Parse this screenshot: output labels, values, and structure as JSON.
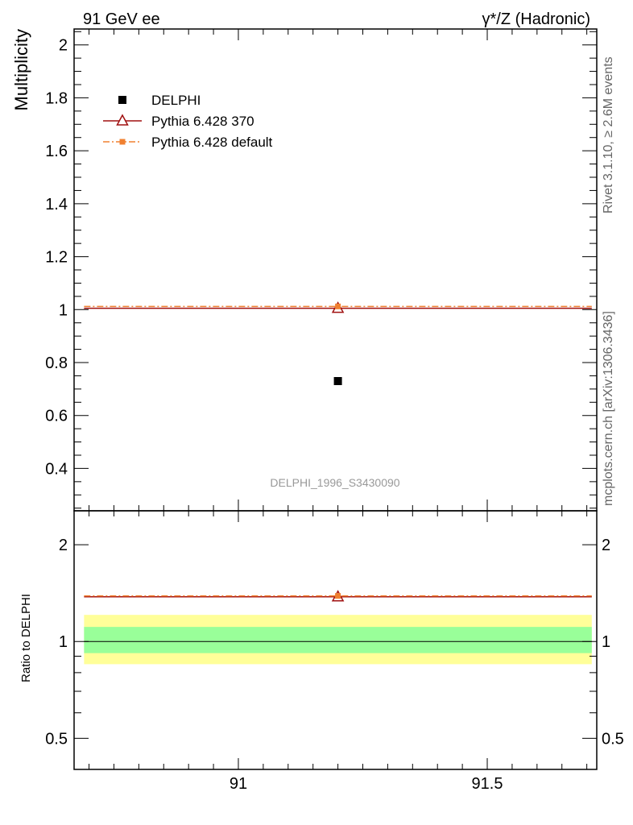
{
  "header": {
    "left": "91 GeV ee",
    "right": "γ*/Z (Hadronic)"
  },
  "side_text": {
    "rivet": "Rivet 3.1.10, ≥ 2.6M events",
    "mcplots": "mcplots.cern.ch [arXiv:1306.3436]"
  },
  "watermark": "DELPHI_1996_S3430090",
  "chart_data": [
    {
      "type": "scatter",
      "title": "",
      "ylabel": "Multiplicity",
      "xlim": [
        90.67,
        91.72
      ],
      "ylim": [
        0.24,
        2.06
      ],
      "yticks": [
        0.4,
        0.6,
        0.8,
        1,
        1.2,
        1.4,
        1.6,
        1.8,
        2
      ],
      "ytick_labels": [
        "0.4",
        "0.6",
        "0.8",
        "1",
        "1.2",
        "1.4",
        "1.6",
        "1.8",
        "2"
      ],
      "legend": {
        "placement": "top-left"
      },
      "series": [
        {
          "name": "DELPHI",
          "marker": "filled-square",
          "color": "#000000",
          "x": [
            91.2
          ],
          "y": [
            0.73
          ]
        },
        {
          "name": "Pythia 6.428 370",
          "marker": "open-triangle",
          "color": "#a01010",
          "x": [
            91.2
          ],
          "y": [
            1.005
          ],
          "xrange": [
            90.69,
            91.71
          ]
        },
        {
          "name": "Pythia 6.428 default",
          "marker": "filled-square-small",
          "color": "#f08030",
          "x": [
            91.2
          ],
          "y": [
            1.012
          ],
          "xrange": [
            90.69,
            91.71
          ]
        }
      ]
    },
    {
      "type": "line",
      "ylabel": "Ratio to DELPHI",
      "xlabel": "",
      "xlim": [
        90.67,
        91.72
      ],
      "ylim": [
        0.4,
        2.55
      ],
      "yscale": "log",
      "xticks": [
        91,
        91.5
      ],
      "xtick_labels": [
        "91",
        "91.5"
      ],
      "yticks": [
        0.5,
        1,
        2
      ],
      "ytick_labels": [
        "0.5",
        "1",
        "2"
      ],
      "bands": [
        {
          "kind": "total-uncertainty",
          "color": "#ffff99",
          "low": 0.85,
          "high": 1.21
        },
        {
          "kind": "stat-uncertainty",
          "color": "#99ff99",
          "low": 0.92,
          "high": 1.11
        }
      ],
      "series": [
        {
          "name": "Pythia 6.428 370",
          "color": "#a01010",
          "x": [
            91.2
          ],
          "y": [
            1.377
          ]
        },
        {
          "name": "Pythia 6.428 default",
          "color": "#f08030",
          "x": [
            91.2
          ],
          "y": [
            1.386
          ]
        }
      ]
    }
  ]
}
